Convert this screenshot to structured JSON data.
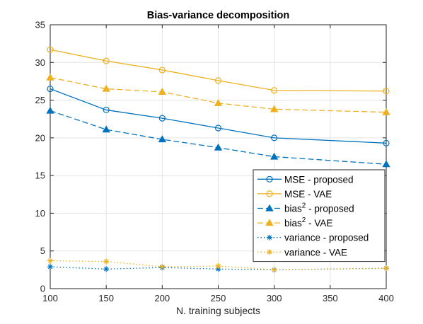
{
  "chart_data": {
    "type": "line",
    "title": "Bias-variance decomposition",
    "xlabel": "N. training subjects",
    "ylabel": "",
    "xlim": [
      100,
      400
    ],
    "ylim": [
      0,
      35
    ],
    "xticks": [
      100,
      150,
      200,
      250,
      300,
      350,
      400
    ],
    "yticks": [
      0,
      5,
      10,
      15,
      20,
      25,
      30,
      35
    ],
    "grid": true,
    "legend_position": "center-right",
    "x": [
      100,
      150,
      200,
      250,
      300,
      400
    ],
    "series": [
      {
        "name": "MSE - proposed",
        "legend_main": "MSE - proposed",
        "legend_sup": "",
        "legend_rest": "",
        "color": "#0072BD",
        "line": "solid",
        "marker": "circle",
        "values": [
          26.5,
          23.7,
          22.6,
          21.3,
          20.0,
          19.3
        ]
      },
      {
        "name": "MSE - VAE",
        "legend_main": "MSE - VAE",
        "legend_sup": "",
        "legend_rest": "",
        "color": "#EDB120",
        "line": "solid",
        "marker": "circle",
        "values": [
          31.7,
          30.2,
          29.0,
          27.6,
          26.3,
          26.2
        ]
      },
      {
        "name": "bias2 - proposed",
        "legend_main": "bias",
        "legend_sup": "2",
        "legend_rest": " - proposed",
        "color": "#0072BD",
        "line": "dashed",
        "marker": "triangle",
        "values": [
          23.6,
          21.1,
          19.8,
          18.7,
          17.5,
          16.5
        ]
      },
      {
        "name": "bias2 - VAE",
        "legend_main": "bias",
        "legend_sup": "2",
        "legend_rest": " - VAE",
        "color": "#EDB120",
        "line": "dashed",
        "marker": "triangle",
        "values": [
          28.0,
          26.5,
          26.1,
          24.6,
          23.8,
          23.4
        ]
      },
      {
        "name": "variance - proposed",
        "legend_main": "variance - proposed",
        "legend_sup": "",
        "legend_rest": "",
        "color": "#0072BD",
        "line": "dotted",
        "marker": "star",
        "values": [
          2.9,
          2.6,
          2.8,
          2.6,
          2.5,
          2.7
        ]
      },
      {
        "name": "variance - VAE",
        "legend_main": "variance - VAE",
        "legend_sup": "",
        "legend_rest": "",
        "color": "#EDB120",
        "line": "dotted",
        "marker": "star",
        "values": [
          3.7,
          3.6,
          2.9,
          3.0,
          2.5,
          2.7
        ]
      }
    ]
  }
}
